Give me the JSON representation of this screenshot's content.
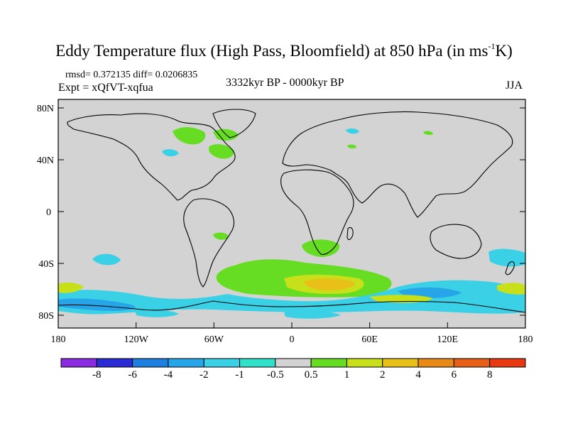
{
  "title_main": "Eddy Temperature flux (High Pass, Bloomfield) at 850 hPa (in ms",
  "title_sup": "-1",
  "title_end": "K)",
  "stats_line": "rmsd= 0.372135 diff= 0.0206835",
  "expt_line": "Expt = xQfVT-xqfua",
  "period": "3332kyr BP - 0000kyr BP",
  "season": "JJA",
  "lat_ticks": [
    "80N",
    "40N",
    "0",
    "40S",
    "80S"
  ],
  "lon_ticks": [
    "180",
    "120W",
    "60W",
    "0",
    "60E",
    "120E",
    "180"
  ],
  "colorbar": {
    "labels": [
      "-8",
      "-6",
      "-4",
      "-2",
      "-1",
      "-0.5",
      "0.5",
      "1",
      "2",
      "4",
      "6",
      "8"
    ],
    "colors": [
      "#8a2be2",
      "#2b2bd6",
      "#1e7fe0",
      "#26a6e8",
      "#3ad0e6",
      "#30e0c8",
      "#d3d3d3",
      "#66dd22",
      "#c8e01a",
      "#e8c018",
      "#e88a18",
      "#e86018",
      "#e83a10"
    ]
  },
  "colors": {
    "land_background": "#d3d3d3",
    "coast": "#000000"
  }
}
